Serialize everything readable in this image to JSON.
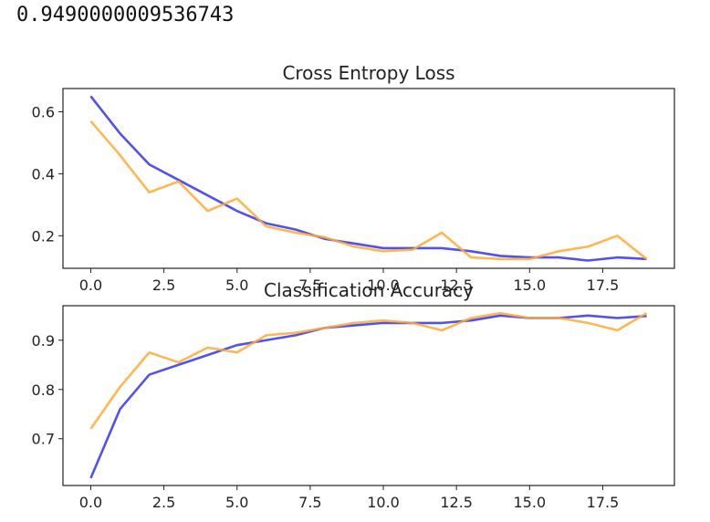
{
  "output_text": "0.9490000009536743",
  "chart_data": [
    {
      "type": "line",
      "title": "Cross Entropy Loss",
      "xlabel": "",
      "ylabel": "",
      "xlim": [
        -0.95,
        19.95
      ],
      "ylim": [
        0.095,
        0.675
      ],
      "xticks": [
        0.0,
        2.5,
        5.0,
        7.5,
        10.0,
        12.5,
        15.0,
        17.5
      ],
      "xtick_labels": [
        "0.0",
        "2.5",
        "5.0",
        "7.5",
        "10.0",
        "12.5",
        "15.0",
        "17.5"
      ],
      "yticks": [
        0.2,
        0.4,
        0.6
      ],
      "ytick_labels": [
        "0.2",
        "0.4",
        "0.6"
      ],
      "grid": false,
      "x": [
        0,
        1,
        2,
        3,
        4,
        5,
        6,
        7,
        8,
        9,
        10,
        11,
        12,
        13,
        14,
        15,
        16,
        17,
        18,
        19
      ],
      "series": [
        {
          "color": "#3333ee",
          "values": [
            0.65,
            0.53,
            0.43,
            0.38,
            0.33,
            0.28,
            0.24,
            0.22,
            0.19,
            0.175,
            0.16,
            0.16,
            0.16,
            0.15,
            0.135,
            0.13,
            0.13,
            0.12,
            0.13,
            0.125
          ]
        },
        {
          "color": "#ffaa33",
          "values": [
            0.57,
            0.46,
            0.34,
            0.375,
            0.28,
            0.32,
            0.23,
            0.21,
            0.195,
            0.165,
            0.15,
            0.155,
            0.21,
            0.13,
            0.125,
            0.125,
            0.15,
            0.165,
            0.2,
            0.125
          ]
        }
      ]
    },
    {
      "type": "line",
      "title": "Classification Accuracy",
      "xlabel": "",
      "ylabel": "",
      "xlim": [
        -0.95,
        19.95
      ],
      "ylim": [
        0.605,
        0.97
      ],
      "xticks": [
        0.0,
        2.5,
        5.0,
        7.5,
        10.0,
        12.5,
        15.0,
        17.5
      ],
      "xtick_labels": [
        "0.0",
        "2.5",
        "5.0",
        "7.5",
        "10.0",
        "12.5",
        "15.0",
        "17.5"
      ],
      "yticks": [
        0.7,
        0.8,
        0.9
      ],
      "ytick_labels": [
        "0.7",
        "0.8",
        "0.9"
      ],
      "grid": false,
      "x": [
        0,
        1,
        2,
        3,
        4,
        5,
        6,
        7,
        8,
        9,
        10,
        11,
        12,
        13,
        14,
        15,
        16,
        17,
        18,
        19
      ],
      "series": [
        {
          "color": "#3333ee",
          "values": [
            0.62,
            0.76,
            0.83,
            0.85,
            0.87,
            0.89,
            0.9,
            0.91,
            0.925,
            0.93,
            0.935,
            0.935,
            0.935,
            0.94,
            0.95,
            0.945,
            0.945,
            0.95,
            0.945,
            0.949
          ]
        },
        {
          "color": "#ffaa33",
          "values": [
            0.72,
            0.805,
            0.875,
            0.855,
            0.885,
            0.875,
            0.91,
            0.915,
            0.925,
            0.935,
            0.94,
            0.935,
            0.92,
            0.945,
            0.955,
            0.945,
            0.945,
            0.935,
            0.92,
            0.955
          ]
        }
      ]
    }
  ]
}
